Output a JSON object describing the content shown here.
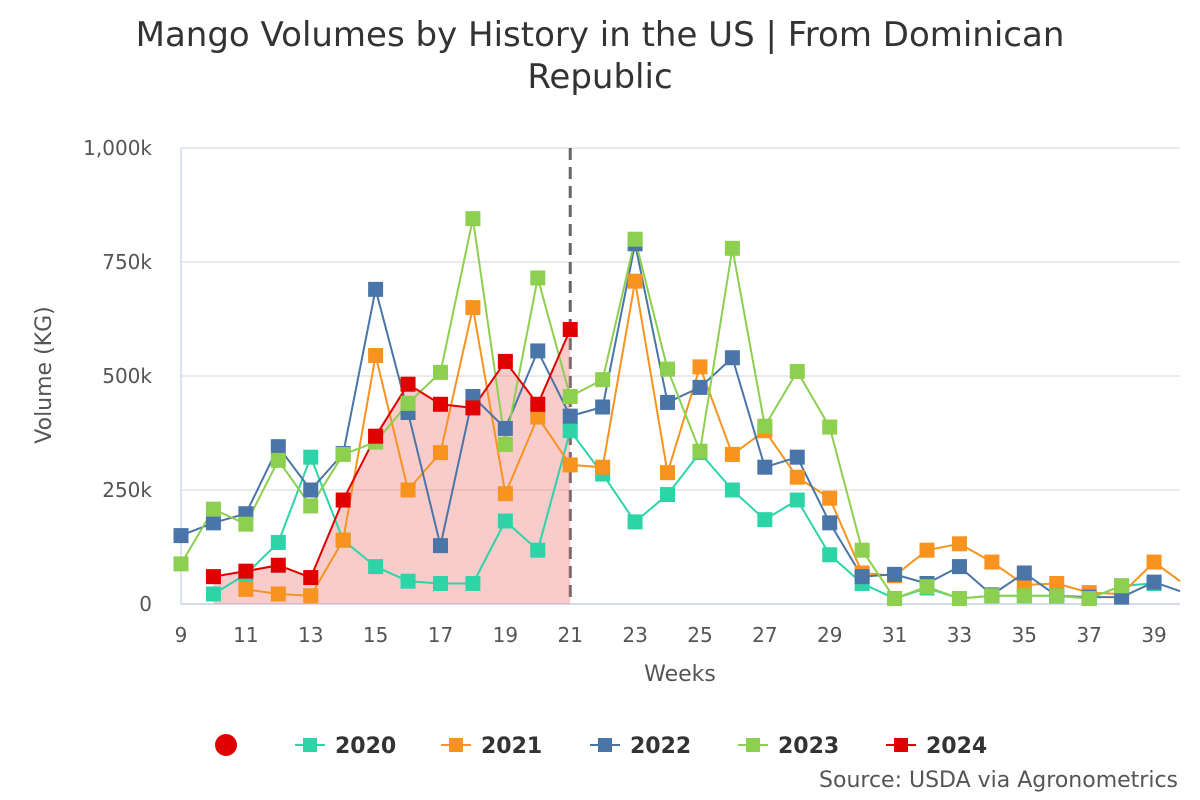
{
  "chart_data": {
    "type": "line",
    "title_lines": [
      "Mango Volumes by History in the US | From Dominican",
      "Republic"
    ],
    "xlabel": "Weeks",
    "ylabel": "Volume (KG)",
    "xlim": [
      9,
      39.8
    ],
    "ylim": [
      0,
      1000000
    ],
    "x_ticks": [
      9,
      11,
      13,
      15,
      17,
      19,
      21,
      23,
      25,
      27,
      29,
      31,
      33,
      35,
      37,
      39
    ],
    "y_ticks": [
      {
        "value": 0,
        "label": "0"
      },
      {
        "value": 250000,
        "label": "250k"
      },
      {
        "value": 500000,
        "label": "500k"
      },
      {
        "value": 750000,
        "label": "750k"
      },
      {
        "value": 1000000,
        "label": "1,000k"
      }
    ],
    "grid": true,
    "current_week_marker": 21,
    "legend_position": "bottom",
    "source": "Source: USDA via Agronometrics",
    "series": [
      {
        "name": "2020",
        "color": "#2dd4a8",
        "area": false,
        "x": [
          10,
          11,
          12,
          13,
          14,
          15,
          16,
          17,
          18,
          19,
          20,
          21,
          22,
          23,
          24,
          25,
          26,
          27,
          28,
          29,
          30,
          31,
          32,
          33,
          34,
          35,
          36,
          37,
          38,
          39
        ],
        "values": [
          22000,
          65000,
          135000,
          322000,
          140000,
          82000,
          50000,
          45000,
          45000,
          182000,
          118000,
          380000,
          285000,
          180000,
          240000,
          332000,
          250000,
          185000,
          228000,
          108000,
          45000,
          12000,
          35000,
          12000,
          18000,
          18000,
          18000,
          12000,
          40000,
          45000
        ]
      },
      {
        "name": "2021",
        "color": "#f7931e",
        "area": false,
        "x": [
          11,
          12,
          13,
          14,
          15,
          16,
          17,
          18,
          19,
          20,
          21,
          22,
          23,
          24,
          25,
          26,
          27,
          28,
          29,
          30,
          31,
          32,
          33,
          34,
          35,
          36,
          37,
          38,
          39,
          39.8
        ],
        "values": [
          32000,
          22000,
          18000,
          140000,
          545000,
          250000,
          332000,
          650000,
          242000,
          410000,
          305000,
          300000,
          708000,
          288000,
          520000,
          328000,
          380000,
          278000,
          232000,
          68000,
          62000,
          118000,
          132000,
          92000,
          42000,
          45000,
          25000,
          22000,
          92000,
          50000
        ]
      },
      {
        "name": "2022",
        "color": "#4a75a8",
        "area": false,
        "x": [
          9,
          10,
          11,
          12,
          13,
          14,
          15,
          16,
          17,
          18,
          19,
          20,
          21,
          22,
          23,
          24,
          25,
          26,
          27,
          28,
          29,
          30,
          31,
          32,
          33,
          34,
          35,
          36,
          37,
          38,
          39,
          39.8
        ],
        "values": [
          150000,
          178000,
          198000,
          345000,
          250000,
          330000,
          690000,
          420000,
          128000,
          455000,
          385000,
          555000,
          412000,
          432000,
          790000,
          442000,
          475000,
          540000,
          300000,
          322000,
          178000,
          60000,
          65000,
          45000,
          82000,
          20000,
          68000,
          18000,
          15000,
          15000,
          48000,
          28000
        ]
      },
      {
        "name": "2023",
        "color": "#8dcf4f",
        "area": false,
        "x": [
          9,
          10,
          11,
          12,
          13,
          14,
          15,
          16,
          17,
          18,
          19,
          20,
          21,
          22,
          23,
          24,
          25,
          26,
          27,
          28,
          29,
          30,
          31,
          32,
          33,
          34,
          35,
          36,
          37,
          38
        ],
        "values": [
          88000,
          208000,
          175000,
          315000,
          215000,
          328000,
          355000,
          440000,
          508000,
          845000,
          350000,
          715000,
          455000,
          492000,
          800000,
          515000,
          335000,
          780000,
          390000,
          510000,
          388000,
          118000,
          12000,
          38000,
          12000,
          18000,
          18000,
          18000,
          12000,
          40000
        ]
      },
      {
        "name": "2024",
        "color": "#e00000",
        "area": true,
        "x": [
          10,
          11,
          12,
          13,
          14,
          15,
          16,
          17,
          18,
          19,
          20,
          21
        ],
        "values": [
          60000,
          72000,
          85000,
          58000,
          228000,
          368000,
          482000,
          438000,
          430000,
          532000,
          438000,
          602000
        ]
      }
    ]
  }
}
